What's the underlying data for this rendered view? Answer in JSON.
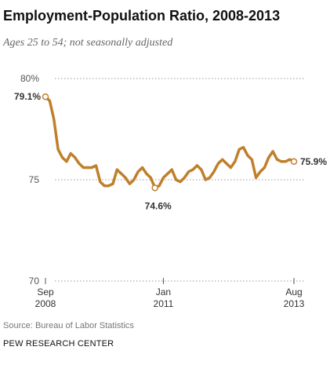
{
  "title": "Employment-Population Ratio, 2008-2013",
  "subtitle": "Ages 25 to 54; not seasonally adjusted",
  "source": "Source: Bureau of Labor Statistics",
  "credit": "PEW RESEARCH CENTER",
  "colors": {
    "line": "#c07f2b",
    "grid": "#999999"
  },
  "chart_data": {
    "type": "line",
    "title": "Employment-Population Ratio, 2008-2013",
    "subtitle": "Ages 25 to 54; not seasonally adjusted",
    "ylim": [
      70,
      80
    ],
    "yticks": [
      {
        "value": 80,
        "label": "80%"
      },
      {
        "value": 75,
        "label": "75"
      },
      {
        "value": 70,
        "label": "70"
      }
    ],
    "xticks": [
      {
        "index": 0,
        "month": "Sep",
        "year": "2008"
      },
      {
        "index": 28,
        "month": "Jan",
        "year": "2011"
      },
      {
        "index": 59,
        "month": "Aug",
        "year": "2013"
      }
    ],
    "grid": true,
    "x_start": "2008-09",
    "x_end": "2013-08",
    "series": [
      {
        "values": [
          79.1,
          78.9,
          78.0,
          76.5,
          76.1,
          75.9,
          76.3,
          76.1,
          75.8,
          75.6,
          75.6,
          75.6,
          75.7,
          74.9,
          74.7,
          74.7,
          74.8,
          75.5,
          75.3,
          75.1,
          74.8,
          75.0,
          75.4,
          75.6,
          75.3,
          75.1,
          74.6,
          74.7,
          75.1,
          75.3,
          75.5,
          75.0,
          74.9,
          75.1,
          75.4,
          75.5,
          75.7,
          75.5,
          75.0,
          75.1,
          75.4,
          75.8,
          76.0,
          75.8,
          75.6,
          75.9,
          76.5,
          76.6,
          76.2,
          76.0,
          75.1,
          75.4,
          75.6,
          76.1,
          76.4,
          76.0,
          75.9,
          75.9,
          76.0,
          75.9
        ]
      }
    ],
    "annotations": [
      {
        "index": 0,
        "text": "79.1%"
      },
      {
        "index": 26,
        "text": "74.6%"
      },
      {
        "index": 59,
        "text": "75.9%"
      }
    ]
  }
}
